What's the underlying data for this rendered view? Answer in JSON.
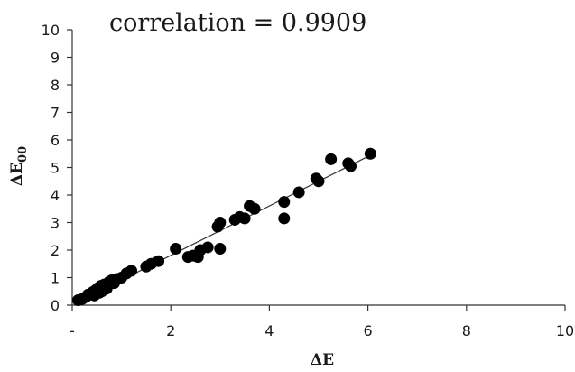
{
  "chart_data": {
    "type": "scatter",
    "title": "correlation = 0.9909",
    "xlabel": "ΔE",
    "ylabel_main": "ΔE",
    "ylabel_sub": "00",
    "xlim": [
      0,
      10
    ],
    "ylim": [
      0,
      10
    ],
    "x_ticks": [
      {
        "value": 0,
        "label": "-"
      },
      {
        "value": 2,
        "label": "2"
      },
      {
        "value": 4,
        "label": "4"
      },
      {
        "value": 6,
        "label": "6"
      },
      {
        "value": 8,
        "label": "8"
      },
      {
        "value": 10,
        "label": "10"
      }
    ],
    "y_ticks": [
      {
        "value": 0,
        "label": "0"
      },
      {
        "value": 1,
        "label": "1"
      },
      {
        "value": 2,
        "label": "2"
      },
      {
        "value": 3,
        "label": "3"
      },
      {
        "value": 4,
        "label": "4"
      },
      {
        "value": 5,
        "label": "5"
      },
      {
        "value": 6,
        "label": "6"
      },
      {
        "value": 7,
        "label": "7"
      },
      {
        "value": 8,
        "label": "8"
      },
      {
        "value": 9,
        "label": "9"
      },
      {
        "value": 10,
        "label": "10"
      }
    ],
    "grid": false,
    "legend": "none",
    "marker_color": "#000000",
    "trendline": {
      "from": [
        0.1,
        0.1
      ],
      "to": [
        6.0,
        5.4
      ]
    },
    "points": [
      {
        "x": 0.12,
        "y": 0.18
      },
      {
        "x": 0.2,
        "y": 0.22
      },
      {
        "x": 0.28,
        "y": 0.3
      },
      {
        "x": 0.32,
        "y": 0.38
      },
      {
        "x": 0.38,
        "y": 0.4
      },
      {
        "x": 0.42,
        "y": 0.48
      },
      {
        "x": 0.45,
        "y": 0.35
      },
      {
        "x": 0.48,
        "y": 0.55
      },
      {
        "x": 0.52,
        "y": 0.62
      },
      {
        "x": 0.55,
        "y": 0.45
      },
      {
        "x": 0.58,
        "y": 0.7
      },
      {
        "x": 0.6,
        "y": 0.5
      },
      {
        "x": 0.65,
        "y": 0.75
      },
      {
        "x": 0.7,
        "y": 0.6
      },
      {
        "x": 0.75,
        "y": 0.85
      },
      {
        "x": 0.8,
        "y": 0.9
      },
      {
        "x": 0.85,
        "y": 0.8
      },
      {
        "x": 0.9,
        "y": 0.95
      },
      {
        "x": 1.0,
        "y": 1.0
      },
      {
        "x": 1.1,
        "y": 1.15
      },
      {
        "x": 1.2,
        "y": 1.25
      },
      {
        "x": 1.5,
        "y": 1.4
      },
      {
        "x": 1.6,
        "y": 1.5
      },
      {
        "x": 1.75,
        "y": 1.6
      },
      {
        "x": 2.1,
        "y": 2.05
      },
      {
        "x": 2.35,
        "y": 1.75
      },
      {
        "x": 2.45,
        "y": 1.8
      },
      {
        "x": 2.55,
        "y": 1.75
      },
      {
        "x": 2.6,
        "y": 2.0
      },
      {
        "x": 2.75,
        "y": 2.1
      },
      {
        "x": 2.95,
        "y": 2.85
      },
      {
        "x": 3.0,
        "y": 3.0
      },
      {
        "x": 3.0,
        "y": 2.05
      },
      {
        "x": 3.3,
        "y": 3.1
      },
      {
        "x": 3.4,
        "y": 3.2
      },
      {
        "x": 3.5,
        "y": 3.15
      },
      {
        "x": 3.6,
        "y": 3.6
      },
      {
        "x": 3.7,
        "y": 3.5
      },
      {
        "x": 4.3,
        "y": 3.75
      },
      {
        "x": 4.3,
        "y": 3.15
      },
      {
        "x": 4.6,
        "y": 4.1
      },
      {
        "x": 4.95,
        "y": 4.6
      },
      {
        "x": 5.0,
        "y": 4.5
      },
      {
        "x": 5.25,
        "y": 5.3
      },
      {
        "x": 5.6,
        "y": 5.15
      },
      {
        "x": 5.65,
        "y": 5.05
      },
      {
        "x": 6.05,
        "y": 5.5
      }
    ]
  }
}
